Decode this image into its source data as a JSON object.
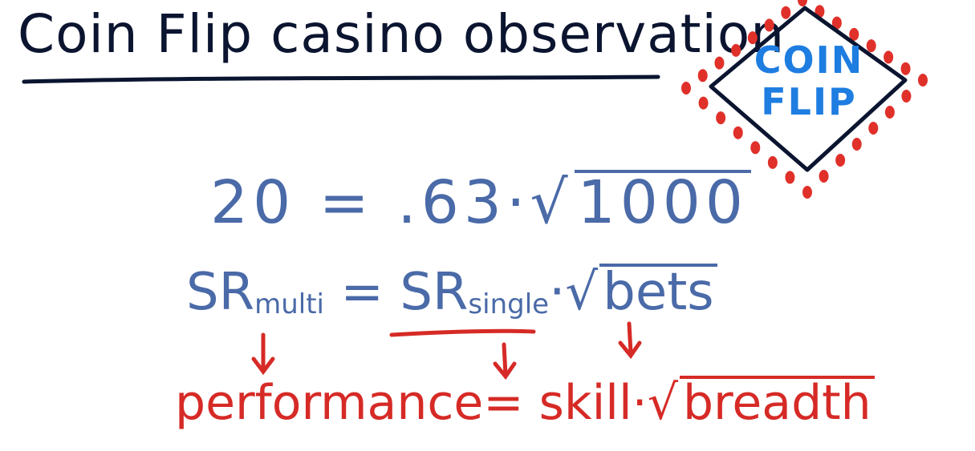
{
  "title": "Coin Flip casino observation",
  "equation_numeric": {
    "lhs": "20",
    "equals": "=",
    "factor": ".63",
    "dot": "·",
    "radicand": "1000"
  },
  "equation_symbolic": {
    "lhs_main": "SR",
    "lhs_sub": "multi",
    "equals": "=",
    "rhs_main": "SR",
    "rhs_sub": "single",
    "dot": "·",
    "radicand": "bets"
  },
  "equation_words": {
    "lhs": "performance",
    "equals": "=",
    "skill": "skill",
    "dot": "·",
    "radicand": "breadth"
  },
  "badge": {
    "line1": "COIN",
    "line2": "FLIP"
  },
  "colors": {
    "ink_dark": "#0b1530",
    "ink_blue": "#4a6aa8",
    "ink_red": "#d62a26",
    "badge_text": "#1e7de0",
    "badge_dots": "#e0302a"
  }
}
